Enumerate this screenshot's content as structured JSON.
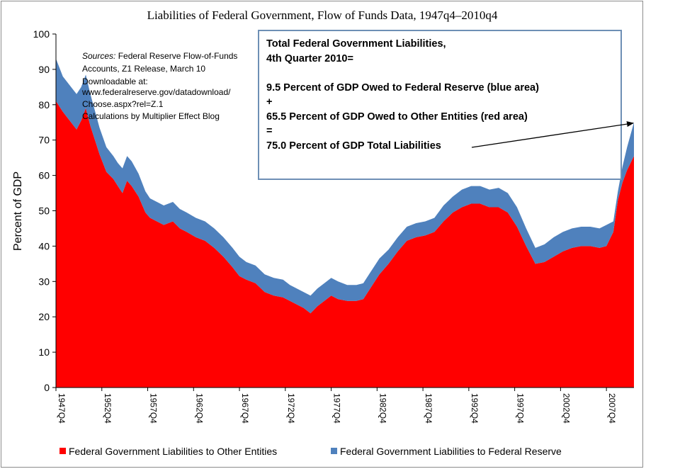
{
  "chart_data": {
    "type": "area",
    "stacked": true,
    "title": "Liabilities of Federal Government, Flow of Funds Data, 1947q4–2010q4",
    "ylabel": "Percent of GDP",
    "xlabel": "",
    "ylim": [
      0,
      100
    ],
    "yticks": [
      "0",
      "10",
      "20",
      "30",
      "40",
      "50",
      "60",
      "70",
      "80",
      "90",
      "100"
    ],
    "xticks": [
      "1947Q4",
      "1952Q4",
      "1957Q4",
      "1962Q4",
      "1967Q4",
      "1972Q4",
      "1977Q4",
      "1982Q4",
      "1987Q4",
      "1992Q4",
      "1997Q4",
      "2002Q4",
      "2007Q4"
    ],
    "xtick_years": [
      1947.75,
      1952.75,
      1957.75,
      1962.75,
      1967.75,
      1972.75,
      1977.75,
      1982.75,
      1987.75,
      1992.75,
      1997.75,
      2002.75,
      2007.75
    ],
    "x": [
      1947.75,
      1948.5,
      1950.0,
      1950.5,
      1951.0,
      1951.5,
      1952.5,
      1953.25,
      1954.0,
      1954.5,
      1955.0,
      1955.5,
      1956.0,
      1956.75,
      1957.5,
      1958.0,
      1958.75,
      1959.5,
      1960.5,
      1961.25,
      1962.0,
      1963.0,
      1964.0,
      1965.0,
      1966.0,
      1967.0,
      1967.75,
      1968.5,
      1969.5,
      1970.5,
      1971.5,
      1972.5,
      1973.25,
      1974.0,
      1974.75,
      1975.5,
      1976.25,
      1977.0,
      1977.75,
      1978.5,
      1979.5,
      1980.5,
      1981.25,
      1982.0,
      1983.0,
      1984.0,
      1985.0,
      1986.0,
      1987.0,
      1988.0,
      1989.0,
      1990.0,
      1991.0,
      1992.0,
      1993.0,
      1994.0,
      1995.0,
      1996.0,
      1997.0,
      1998.0,
      1999.0,
      2000.0,
      2001.0,
      2002.0,
      2003.0,
      2004.0,
      2005.0,
      2006.0,
      2007.0,
      2007.75,
      2008.5,
      2009.0,
      2009.5,
      2010.0,
      2010.75
    ],
    "series": [
      {
        "name": "Federal Government Liabilities to Other Entities",
        "color": "#ff0000",
        "values": [
          81,
          78,
          73,
          75.5,
          79,
          74,
          66,
          61,
          59,
          57,
          55,
          58.5,
          57,
          54,
          49.5,
          48,
          47,
          46,
          47,
          45,
          44,
          42.5,
          41.5,
          39.5,
          37,
          34,
          31.5,
          30.5,
          29.5,
          27,
          26,
          25.5,
          24.5,
          23.5,
          22.5,
          21,
          23,
          24.5,
          26,
          25,
          24.5,
          24.5,
          25,
          28,
          32,
          35,
          38.5,
          41.5,
          42.5,
          43,
          44,
          47,
          49.5,
          51,
          52,
          52,
          51,
          51,
          49.5,
          45.5,
          40,
          35,
          35.5,
          37,
          38.5,
          39.5,
          40,
          40,
          39.5,
          40,
          44,
          53,
          58,
          61.5,
          65.5
        ]
      },
      {
        "name": "Federal Government Liabilities to Federal Reserve",
        "color": "#4f81bd",
        "values": [
          12,
          10,
          10,
          9.5,
          9.5,
          9,
          7.5,
          7,
          6.5,
          6.5,
          7,
          7,
          7,
          6.5,
          6,
          5.5,
          5.5,
          5.5,
          5.5,
          5.5,
          5.5,
          5.5,
          5.5,
          5.5,
          5.5,
          5.5,
          5.5,
          5,
          5,
          5,
          5,
          5,
          4.5,
          4.5,
          4.5,
          5,
          5,
          5,
          5,
          5,
          4.5,
          4.5,
          4.5,
          4.5,
          4.5,
          4,
          4,
          4,
          4,
          4,
          4,
          4.5,
          4.5,
          5,
          5,
          5,
          5,
          5.5,
          5.5,
          5.5,
          5,
          4.5,
          5,
          5.5,
          5.5,
          5.5,
          5.5,
          5.5,
          5.5,
          6,
          3,
          2.5,
          4.5,
          6.5,
          9.5
        ]
      }
    ],
    "legend": [
      "Federal Government Liabilities to Other Entities",
      "Federal Government Liabilities to Federal Reserve"
    ],
    "legend_position": "bottom",
    "grid": false,
    "sources_note": {
      "label": "Sources:",
      "lines": [
        " Federal Reserve Flow-of-Funds",
        "Accounts, Z1 Release, March 10",
        "Downloadable at:",
        "www.federalreserve.gov/datadownload/",
        "Choose.aspx?rel=Z.1",
        "Calculations by Multiplier Effect Blog"
      ]
    },
    "annotation": {
      "lines": [
        "Total Federal Government Liabilities,",
        "4th Quarter 2010=",
        "",
        "9.5 Percent of GDP Owed to Federal Reserve (blue area)",
        "+",
        "65.5 Percent of GDP Owed to Other Entities (red area)",
        "=",
        "75.0 Percent of GDP Total Liabilities"
      ],
      "arrow_target": {
        "x": 2010.75,
        "y": 75
      }
    }
  }
}
